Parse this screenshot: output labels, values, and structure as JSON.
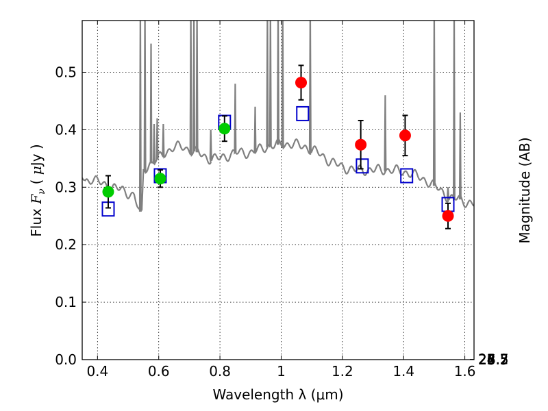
{
  "chart_data": {
    "type": "scatter",
    "xlabel": "Wavelength  λ (μm)",
    "ylabel": "Flux  F_ν  ( μJy )",
    "ylabel_parts": {
      "prefix": "Flux  ",
      "var": "F",
      "sub": "ν",
      "open": "( ",
      "mu": "μ",
      "unit": "Jy )"
    },
    "y2label": "Magnitude (AB)",
    "xlim": [
      0.35,
      1.63
    ],
    "ylim": [
      0.0,
      0.59
    ],
    "grid": true,
    "x_ticks": [
      0.4,
      0.6,
      0.8,
      1.0,
      1.2,
      1.4,
      1.6
    ],
    "x_tick_labels": [
      "0.4",
      "0.6",
      "0.8",
      "1",
      "1.2",
      "1.4",
      "1.6"
    ],
    "y_ticks": [
      0.0,
      0.1,
      0.2,
      0.3,
      0.4,
      0.5
    ],
    "y_tick_labels": [
      "0.0",
      "0.1",
      "0.2",
      "0.3",
      "0.4",
      "0.5"
    ],
    "y2_ticks": [
      {
        "label": "24.5",
        "mag": 24.5
      },
      {
        "label": "24.7",
        "mag": 24.7
      },
      {
        "label": "25",
        "mag": 25.0
      },
      {
        "label": "25.2",
        "mag": 25.2
      },
      {
        "label": "25.5",
        "mag": 25.5
      },
      {
        "label": "26",
        "mag": 26.0
      },
      {
        "label": "26.5",
        "mag": 26.5
      },
      {
        "label": "27",
        "mag": 27.0
      },
      {
        "label": "28",
        "mag": 28.0
      }
    ],
    "series": [
      {
        "kind": "line",
        "color": "#808080",
        "continuum": [
          [
            0.35,
            0.32
          ],
          [
            0.36,
            0.31
          ],
          [
            0.38,
            0.315
          ],
          [
            0.4,
            0.31
          ],
          [
            0.42,
            0.305
          ],
          [
            0.45,
            0.3
          ],
          [
            0.48,
            0.295
          ],
          [
            0.5,
            0.29
          ],
          [
            0.52,
            0.285
          ],
          [
            0.535,
            0.26
          ],
          [
            0.545,
            0.255
          ],
          [
            0.55,
            0.33
          ],
          [
            0.57,
            0.34
          ],
          [
            0.6,
            0.35
          ],
          [
            0.62,
            0.36
          ],
          [
            0.65,
            0.37
          ],
          [
            0.68,
            0.37
          ],
          [
            0.7,
            0.365
          ],
          [
            0.73,
            0.36
          ],
          [
            0.76,
            0.35
          ],
          [
            0.8,
            0.35
          ],
          [
            0.85,
            0.36
          ],
          [
            0.9,
            0.36
          ],
          [
            0.95,
            0.37
          ],
          [
            1.0,
            0.375
          ],
          [
            1.04,
            0.375
          ],
          [
            1.08,
            0.37
          ],
          [
            1.12,
            0.36
          ],
          [
            1.16,
            0.345
          ],
          [
            1.2,
            0.335
          ],
          [
            1.24,
            0.33
          ],
          [
            1.3,
            0.33
          ],
          [
            1.36,
            0.33
          ],
          [
            1.42,
            0.325
          ],
          [
            1.48,
            0.31
          ],
          [
            1.52,
            0.295
          ],
          [
            1.55,
            0.28
          ],
          [
            1.58,
            0.28
          ],
          [
            1.6,
            0.275
          ],
          [
            1.63,
            0.27
          ]
        ],
        "lines": [
          [
            0.54,
            0.61
          ],
          [
            0.555,
            0.61
          ],
          [
            0.575,
            0.55
          ],
          [
            0.585,
            0.41
          ],
          [
            0.595,
            0.42
          ],
          [
            0.615,
            0.41
          ],
          [
            0.705,
            0.61
          ],
          [
            0.715,
            0.61
          ],
          [
            0.725,
            0.61
          ],
          [
            0.77,
            0.4
          ],
          [
            0.85,
            0.48
          ],
          [
            0.915,
            0.44
          ],
          [
            0.955,
            0.61
          ],
          [
            0.965,
            0.61
          ],
          [
            0.99,
            0.61
          ],
          [
            1.005,
            0.61
          ],
          [
            1.095,
            0.61
          ],
          [
            1.34,
            0.46
          ],
          [
            1.5,
            0.61
          ],
          [
            1.545,
            0.3
          ],
          [
            1.565,
            0.61
          ],
          [
            1.585,
            0.43
          ]
        ]
      },
      {
        "kind": "squares",
        "color": "#0000cc",
        "x": [
          0.435,
          0.605,
          0.815,
          1.07,
          1.265,
          1.41,
          1.545
        ],
        "y": [
          0.262,
          0.32,
          0.413,
          0.428,
          0.337,
          0.32,
          0.27
        ]
      },
      {
        "kind": "points",
        "color": "#00cc00",
        "ecolor": "#000000",
        "x": [
          0.435,
          0.605,
          0.815
        ],
        "y": [
          0.292,
          0.315,
          0.402
        ],
        "err": [
          0.028,
          0.015,
          0.022
        ]
      },
      {
        "kind": "points",
        "color": "#ff0000",
        "ecolor": "#000000",
        "x": [
          1.065,
          1.26,
          1.405,
          1.545
        ],
        "y": [
          0.482,
          0.374,
          0.39,
          0.25
        ],
        "err": [
          0.03,
          0.042,
          0.035,
          0.022
        ]
      }
    ]
  }
}
